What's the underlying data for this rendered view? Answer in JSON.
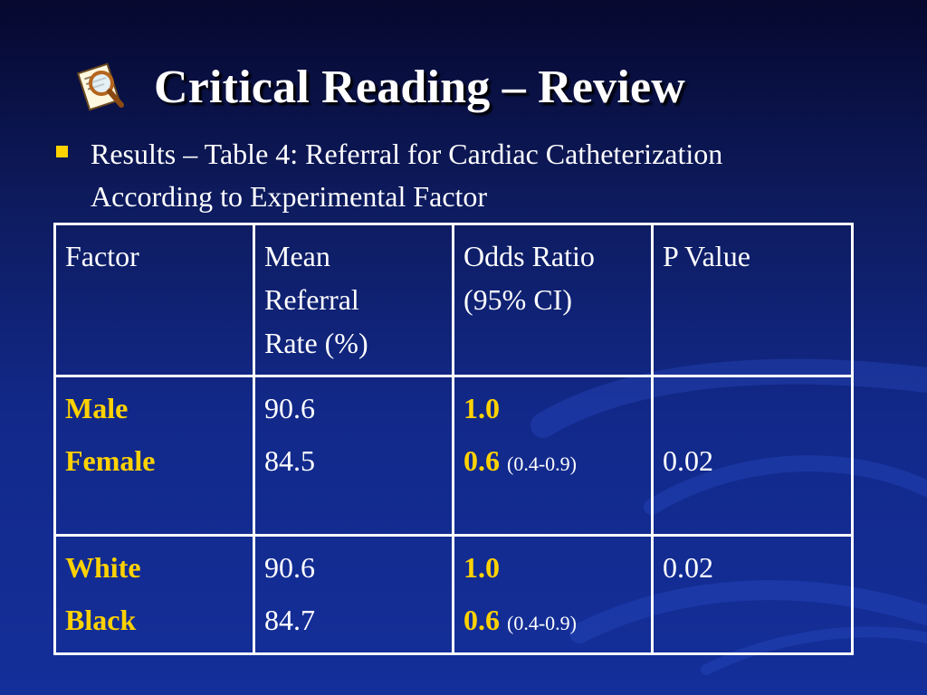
{
  "slide": {
    "title": "Critical Reading – Review",
    "title_icon": "magnifier-document-icon",
    "bullet": {
      "line1": "Results – Table 4: Referral for Cardiac Catheterization",
      "line2": "According to Experimental Factor"
    },
    "colors": {
      "background": "#12298a",
      "accent": "#ffd200",
      "text": "#ffffff"
    }
  },
  "table": {
    "headers": {
      "factor": "Factor",
      "mean_line1": "Mean",
      "mean_line2": "Referral",
      "mean_line3": "Rate (%)",
      "odds_line1": "Odds Ratio",
      "odds_line2": "(95% CI)",
      "pvalue": "P Value"
    },
    "rows": [
      {
        "factors": [
          "Male",
          "Female"
        ],
        "means": [
          "90.6",
          "84.5"
        ],
        "odds": [
          {
            "value": "1.0",
            "ci": ""
          },
          {
            "value": "0.6",
            "ci": "(0.4-0.9)"
          }
        ],
        "pvalue": "0.02"
      },
      {
        "factors": [
          "White",
          "Black"
        ],
        "means": [
          "90.6",
          "84.7"
        ],
        "odds": [
          {
            "value": "1.0",
            "ci": ""
          },
          {
            "value": "0.6",
            "ci": "(0.4-0.9)"
          }
        ],
        "pvalue": "0.02"
      }
    ]
  }
}
